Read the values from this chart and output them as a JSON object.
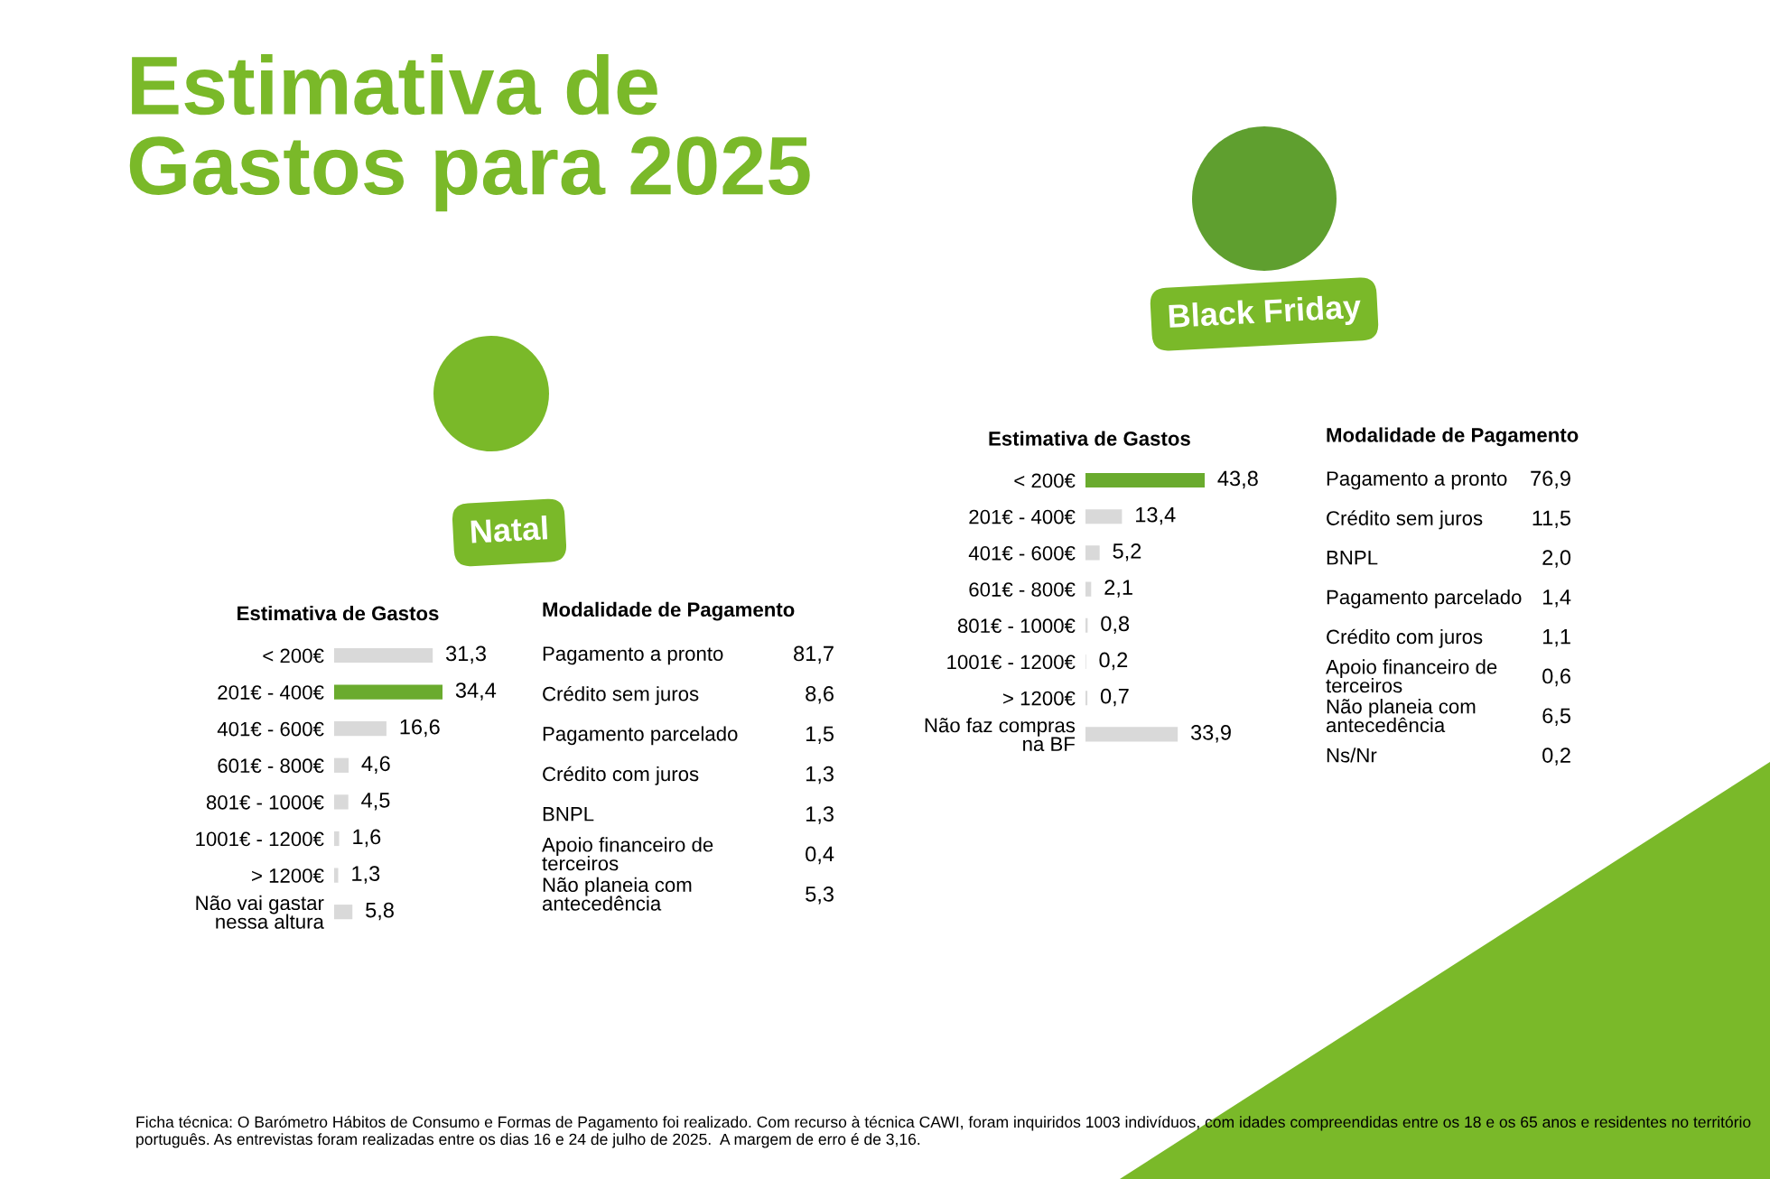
{
  "chart_data": [
    {
      "type": "other",
      "title": "Estimativa de\nGastos para 2025",
      "annotations": [
        "Natal",
        "Black Friday",
        "Ficha técnica: O Barómetro Hábitos de Consumo e Formas de Pagamento foi realizado. Com recurso à técnica CAWI, foram inquiridos 1003 indivíduos, com idades compreendidas entre os 18 e os 65 anos e residentes no território português. As entrevistas foram realizadas entre os dias 16 e 24 de julho de 2025.  A margem de erro é de 3,16."
      ]
    },
    {
      "type": "bar",
      "orientation": "horizontal",
      "title": "Estimativa de Gastos",
      "categories": [
        "< 200€",
        "201€ - 400€",
        "401€ - 600€",
        "601€ - 800€",
        "801€ - 1000€",
        "1001€ - 1200€",
        "> 1200€",
        "Não vai gastar\nnessa altura"
      ],
      "values": [
        31.3,
        34.4,
        16.6,
        4.6,
        4.5,
        1.6,
        1.3,
        5.8
      ],
      "value_labels": [
        "31,3",
        "34,4",
        "16,6",
        "4,6",
        "4,5",
        "1,6",
        "1,3",
        "5,8"
      ],
      "colors": [
        "#d9d9d9",
        "#6aab2e",
        "#d9d9d9",
        "#d9d9d9",
        "#d9d9d9",
        "#d9d9d9",
        "#d9d9d9",
        "#d9d9d9"
      ]
    },
    {
      "type": "other",
      "title": "Modalidade de Pagamento",
      "categories": [
        "Pagamento a pronto",
        "Crédito sem juros",
        "Pagamento parcelado",
        "Crédito com juros",
        "BNPL",
        "Apoio financeiro de\nterceiros",
        "Não planeia com\nantecedência"
      ],
      "values": [
        81.7,
        8.6,
        1.5,
        1.3,
        1.3,
        0.4,
        5.3
      ],
      "value_labels": [
        "81,7",
        "8,6",
        "1,5",
        "1,3",
        "1,3",
        "0,4",
        "5,3"
      ]
    },
    {
      "type": "bar",
      "orientation": "horizontal",
      "title": "Estimativa de Gastos",
      "categories": [
        "< 200€",
        "201€ - 400€",
        "401€ - 600€",
        "601€ - 800€",
        "801€ - 1000€",
        "1001€ - 1200€",
        "> 1200€",
        "Não faz compras\nna BF"
      ],
      "values": [
        43.8,
        13.4,
        5.2,
        2.1,
        0.8,
        0.2,
        0.7,
        33.9
      ],
      "value_labels": [
        "43,8",
        "13,4",
        "5,2",
        "2,1",
        "0,8",
        "0,2",
        "0,7",
        "33,9"
      ],
      "colors": [
        "#6aab2e",
        "#d9d9d9",
        "#d9d9d9",
        "#d9d9d9",
        "#d9d9d9",
        "#d9d9d9",
        "#d9d9d9",
        "#d9d9d9"
      ]
    },
    {
      "type": "other",
      "title": "Modalidade de Pagamento",
      "categories": [
        "Pagamento a pronto",
        "Crédito sem juros",
        "BNPL",
        "Pagamento parcelado",
        "Crédito com juros",
        "Apoio financeiro de\nterceiros",
        "Não planeia com\nantecedência",
        "Ns/Nr"
      ],
      "values": [
        76.9,
        11.5,
        2.0,
        1.4,
        1.1,
        0.6,
        6.5,
        0.2
      ],
      "value_labels": [
        "76,9",
        "11,5",
        "2,0",
        "1,4",
        "1,1",
        "0,6",
        "6,5",
        "0,2"
      ]
    }
  ]
}
